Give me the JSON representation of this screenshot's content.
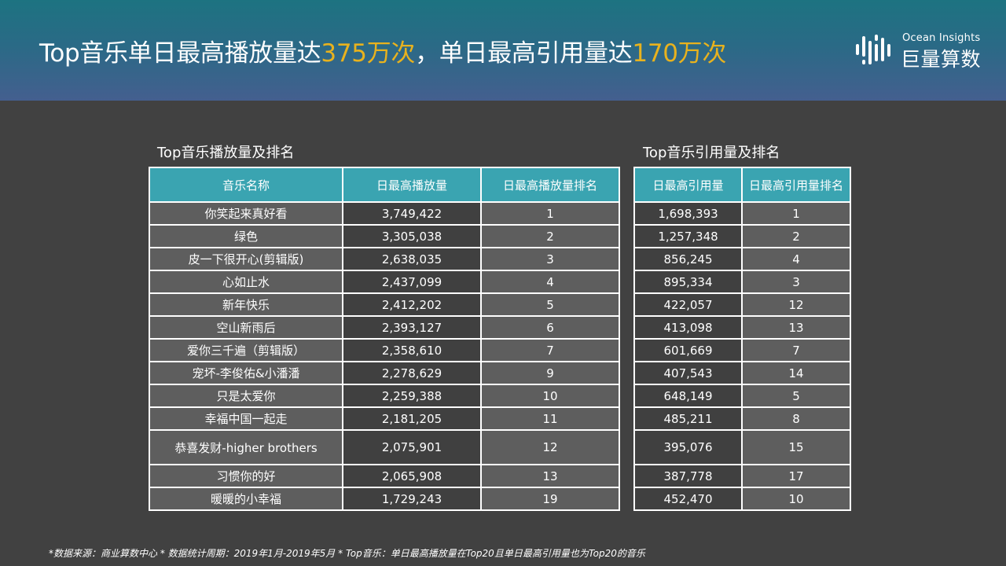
{
  "header": {
    "title_part1": "Top音乐单日最高播放量达",
    "title_hl1": "375万次",
    "title_part2": "，单日最高引用量达",
    "title_hl2": "170万次",
    "accent_color": "#e8b21e"
  },
  "logo": {
    "en": "Ocean Insights",
    "cn": "巨量算数",
    "icon": "bars-logo-icon"
  },
  "play_table": {
    "title": "Top音乐播放量及排名",
    "headers": [
      "音乐名称",
      "日最高播放量",
      "日最高播放量排名"
    ],
    "header_color": "#3aa4b1"
  },
  "cite_table": {
    "title": "Top音乐引用量及排名",
    "headers": [
      "日最高引用量",
      "日最高引用量排名"
    ]
  },
  "rows": [
    {
      "name": "你笑起来真好看",
      "plays": "3,749,422",
      "play_rank": "1",
      "cites": "1,698,393",
      "cite_rank": "1"
    },
    {
      "name": "绿色",
      "plays": "3,305,038",
      "play_rank": "2",
      "cites": "1,257,348",
      "cite_rank": "2"
    },
    {
      "name": "皮一下很开心(剪辑版)",
      "plays": "2,638,035",
      "play_rank": "3",
      "cites": "856,245",
      "cite_rank": "4"
    },
    {
      "name": "心如止水",
      "plays": "2,437,099",
      "play_rank": "4",
      "cites": "895,334",
      "cite_rank": "3"
    },
    {
      "name": "新年快乐",
      "plays": "2,412,202",
      "play_rank": "5",
      "cites": "422,057",
      "cite_rank": "12"
    },
    {
      "name": "空山新雨后",
      "plays": "2,393,127",
      "play_rank": "6",
      "cites": "413,098",
      "cite_rank": "13"
    },
    {
      "name": "爱你三千遍（剪辑版）",
      "plays": "2,358,610",
      "play_rank": "7",
      "cites": "601,669",
      "cite_rank": "7"
    },
    {
      "name": "宠坏-李俊佑&小潘潘",
      "plays": "2,278,629",
      "play_rank": "9",
      "cites": "407,543",
      "cite_rank": "14"
    },
    {
      "name": "只是太爱你",
      "plays": "2,259,388",
      "play_rank": "10",
      "cites": "648,149",
      "cite_rank": "5"
    },
    {
      "name": "幸福中国一起走",
      "plays": "2,181,205",
      "play_rank": "11",
      "cites": "485,211",
      "cite_rank": "8"
    },
    {
      "name": "恭喜发财-higher brothers",
      "plays": "2,075,901",
      "play_rank": "12",
      "cites": "395,076",
      "cite_rank": "15"
    },
    {
      "name": "习惯你的好",
      "plays": "2,065,908",
      "play_rank": "13",
      "cites": "387,778",
      "cite_rank": "17"
    },
    {
      "name": "暖暖的小幸福",
      "plays": "1,729,243",
      "play_rank": "19",
      "cites": "452,470",
      "cite_rank": "10"
    }
  ],
  "footnote": "*数据来源：商业算数中心 * 数据统计周期：2019年1月-2019年5月 * Top音乐：单日最高播放量在Top20且单日最高引用量也为Top20的音乐"
}
